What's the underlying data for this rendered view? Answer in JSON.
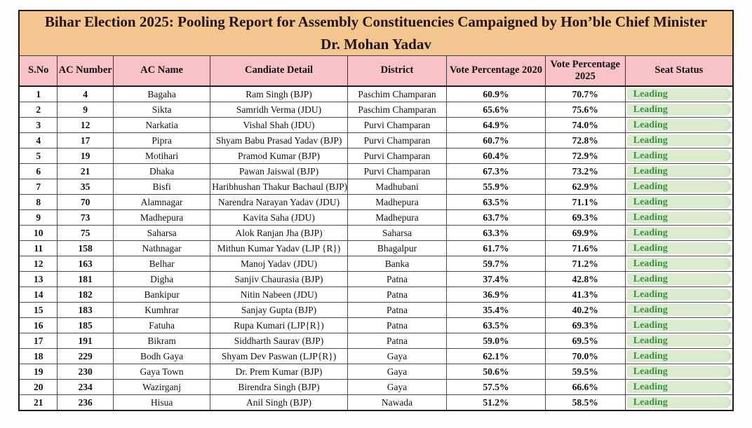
{
  "title": "Bihar Election 2025: Pooling Report for Assembly Constituencies Campaigned by Hon’ble Chief Minister Dr. Mohan Yadav",
  "columns": [
    "S.No",
    "AC Number",
    "AC Name",
    "Candiate Detail",
    "District",
    "Vote Percentage 2020",
    "Vote Percentage 2025",
    "Seat Status"
  ],
  "colors": {
    "title_bg": "#f3c68f",
    "header_bg": "#f8c3c7",
    "badge_bg": "#dcebd0",
    "badge_text": "#3a9142",
    "border": "#1c1c1c"
  },
  "rows": [
    {
      "sno": "1",
      "ac_number": "4",
      "ac_name": "Bagaha",
      "candidate": "Ram Singh (BJP)",
      "district": "Paschim Champaran",
      "vote_2020": "60.9%",
      "vote_2025": "70.7%",
      "status": "Leading"
    },
    {
      "sno": "2",
      "ac_number": "9",
      "ac_name": "Sikta",
      "candidate": "Samridh Verma (JDU)",
      "district": "Paschim Champaran",
      "vote_2020": "65.6%",
      "vote_2025": "75.6%",
      "status": "Leading"
    },
    {
      "sno": "3",
      "ac_number": "12",
      "ac_name": "Narkatia",
      "candidate": "Vishal Shah (JDU)",
      "district": "Purvi Champaran",
      "vote_2020": "64.9%",
      "vote_2025": "74.0%",
      "status": "Leading"
    },
    {
      "sno": "4",
      "ac_number": "17",
      "ac_name": "Pipra",
      "candidate": "Shyam Babu Prasad Yadav (BJP)",
      "district": "Purvi Champaran",
      "vote_2020": "60.7%",
      "vote_2025": "72.8%",
      "status": "Leading"
    },
    {
      "sno": "5",
      "ac_number": "19",
      "ac_name": "Motihari",
      "candidate": "Pramod Kumar (BJP)",
      "district": "Purvi Champaran",
      "vote_2020": "60.4%",
      "vote_2025": "72.9%",
      "status": "Leading"
    },
    {
      "sno": "6",
      "ac_number": "21",
      "ac_name": "Dhaka",
      "candidate": "Pawan Jaiswal (BJP)",
      "district": "Purvi Champaran",
      "vote_2020": "67.3%",
      "vote_2025": "73.2%",
      "status": "Leading"
    },
    {
      "sno": "7",
      "ac_number": "35",
      "ac_name": "Bisfi",
      "candidate": "Haribhushan Thakur Bachaul (BJP)",
      "district": "Madhubani",
      "vote_2020": "55.9%",
      "vote_2025": "62.9%",
      "status": "Leading"
    },
    {
      "sno": "8",
      "ac_number": "70",
      "ac_name": "Alamnagar",
      "candidate": "Narendra Narayan Yadav (JDU)",
      "district": "Madhepura",
      "vote_2020": "63.5%",
      "vote_2025": "71.1%",
      "status": "Leading"
    },
    {
      "sno": "9",
      "ac_number": "73",
      "ac_name": "Madhepura",
      "candidate": "Kavita Saha (JDU)",
      "district": "Madhepura",
      "vote_2020": "63.7%",
      "vote_2025": "69.3%",
      "status": "Leading"
    },
    {
      "sno": "10",
      "ac_number": "75",
      "ac_name": "Saharsa",
      "candidate": "Alok Ranjan Jha (BJP)",
      "district": "Saharsa",
      "vote_2020": "63.3%",
      "vote_2025": "69.9%",
      "status": "Leading"
    },
    {
      "sno": "11",
      "ac_number": "158",
      "ac_name": "Nathnagar",
      "candidate": "Mithun Kumar Yadav (LJP {R})",
      "district": "Bhagalpur",
      "vote_2020": "61.7%",
      "vote_2025": "71.6%",
      "status": "Leading"
    },
    {
      "sno": "12",
      "ac_number": "163",
      "ac_name": "Belhar",
      "candidate": "Manoj Yadav (JDU)",
      "district": "Banka",
      "vote_2020": "59.7%",
      "vote_2025": "71.2%",
      "status": "Leading"
    },
    {
      "sno": "13",
      "ac_number": "181",
      "ac_name": "Digha",
      "candidate": "Sanjiv Chaurasia (BJP)",
      "district": "Patna",
      "vote_2020": "37.4%",
      "vote_2025": "42.8%",
      "status": "Leading"
    },
    {
      "sno": "14",
      "ac_number": "182",
      "ac_name": "Bankipur",
      "candidate": "Nitin Nabeen (JDU)",
      "district": "Patna",
      "vote_2020": "36.9%",
      "vote_2025": "41.3%",
      "status": "Leading"
    },
    {
      "sno": "15",
      "ac_number": "183",
      "ac_name": "Kumhrar",
      "candidate": "Sanjay Gupta (BJP)",
      "district": "Patna",
      "vote_2020": "35.4%",
      "vote_2025": "40.2%",
      "status": "Leading"
    },
    {
      "sno": "16",
      "ac_number": "185",
      "ac_name": "Fatuha",
      "candidate": "Rupa Kumari (LJP{R})",
      "district": "Patna",
      "vote_2020": "63.5%",
      "vote_2025": "69.3%",
      "status": "Leading"
    },
    {
      "sno": "17",
      "ac_number": "191",
      "ac_name": "Bikram",
      "candidate": "Siddharth Saurav (BJP)",
      "district": "Patna",
      "vote_2020": "59.0%",
      "vote_2025": "69.5%",
      "status": "Leading"
    },
    {
      "sno": "18",
      "ac_number": "229",
      "ac_name": "Bodh Gaya",
      "candidate": "Shyam Dev Paswan (LJP{R})",
      "district": "Gaya",
      "vote_2020": "62.1%",
      "vote_2025": "70.0%",
      "status": "Leading"
    },
    {
      "sno": "19",
      "ac_number": "230",
      "ac_name": "Gaya Town",
      "candidate": "Dr. Prem Kumar (BJP)",
      "district": "Gaya",
      "vote_2020": "50.6%",
      "vote_2025": "59.5%",
      "status": "Leading"
    },
    {
      "sno": "20",
      "ac_number": "234",
      "ac_name": "Wazirganj",
      "candidate": "Birendra Singh (BJP)",
      "district": "Gaya",
      "vote_2020": "57.5%",
      "vote_2025": "66.6%",
      "status": "Leading"
    },
    {
      "sno": "21",
      "ac_number": "236",
      "ac_name": "Hisua",
      "candidate": "Anil Singh (BJP)",
      "district": "Nawada",
      "vote_2020": "51.2%",
      "vote_2025": "58.5%",
      "status": "Leading"
    }
  ]
}
